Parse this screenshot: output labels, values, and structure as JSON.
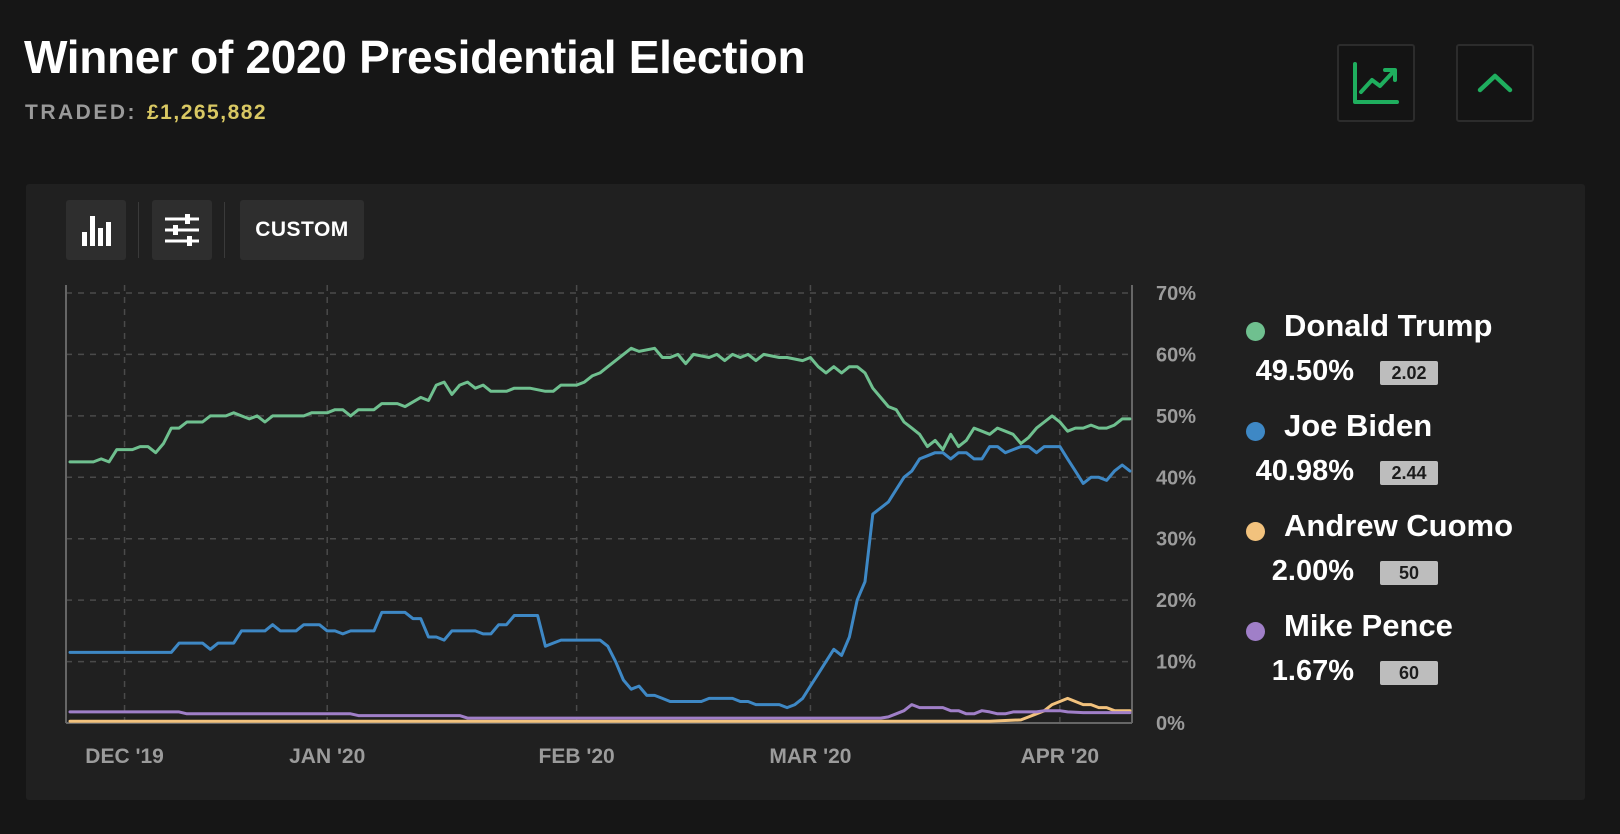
{
  "header": {
    "title": "Winner of 2020 Presidential Election",
    "traded_label": "TRADED:",
    "traded_amount": "£1,265,882",
    "chart_icon": "line-chart-icon",
    "collapse_icon": "chevron-up-icon"
  },
  "toolbar": {
    "bars_icon": "bar-chart-icon",
    "sliders_icon": "sliders-icon",
    "custom_label": "CUSTOM"
  },
  "colors": {
    "trump": "#6fc08f",
    "biden": "#3e88c5",
    "cuomo": "#f2c27d",
    "pence": "#a07fc8",
    "accent_green": "#1fae5e",
    "traded_amount": "#d9c863"
  },
  "legend": [
    {
      "name": "Donald Trump",
      "pct": "49.50%",
      "odds": "2.02",
      "color": "#6fc08f"
    },
    {
      "name": "Joe Biden",
      "pct": "40.98%",
      "odds": "2.44",
      "color": "#3e88c5"
    },
    {
      "name": "Andrew Cuomo",
      "pct": "2.00%",
      "odds": "50",
      "color": "#f2c27d"
    },
    {
      "name": "Mike Pence",
      "pct": "1.67%",
      "odds": "60",
      "color": "#a07fc8"
    }
  ],
  "chart_data": {
    "type": "line",
    "title": "Winner of 2020 Presidential Election",
    "x_unit": "days since 2019-11-27",
    "xlim": [
      0,
      136
    ],
    "ylim": [
      0,
      70
    ],
    "y_ticks": [
      0,
      10,
      20,
      30,
      40,
      50,
      60,
      70
    ],
    "y_tick_labels": [
      "0%",
      "10%",
      "20%",
      "30%",
      "40%",
      "50%",
      "60%",
      "70%"
    ],
    "x_ticks": [
      7,
      33,
      65,
      95,
      127
    ],
    "x_tick_labels": [
      "DEC '19",
      "JAN '20",
      "FEB '20",
      "MAR '20",
      "APR '20"
    ],
    "grid": true,
    "series": [
      {
        "name": "Donald Trump",
        "color": "#6fc08f",
        "points": [
          [
            0,
            42.5
          ],
          [
            3,
            42.5
          ],
          [
            4,
            43
          ],
          [
            5,
            42.5
          ],
          [
            6,
            44.5
          ],
          [
            8,
            44.5
          ],
          [
            9,
            45
          ],
          [
            10,
            45
          ],
          [
            11,
            44
          ],
          [
            12,
            45.5
          ],
          [
            13,
            48
          ],
          [
            14,
            48
          ],
          [
            15,
            49
          ],
          [
            17,
            49
          ],
          [
            18,
            50
          ],
          [
            20,
            50
          ],
          [
            21,
            50.5
          ],
          [
            22,
            50
          ],
          [
            23,
            49.5
          ],
          [
            24,
            50
          ],
          [
            25,
            49
          ],
          [
            26,
            50
          ],
          [
            30,
            50
          ],
          [
            31,
            50.5
          ],
          [
            33,
            50.5
          ],
          [
            34,
            51
          ],
          [
            35,
            51
          ],
          [
            36,
            50
          ],
          [
            37,
            51
          ],
          [
            39,
            51
          ],
          [
            40,
            52
          ],
          [
            42,
            52
          ],
          [
            43,
            51.5
          ],
          [
            45,
            53
          ],
          [
            46,
            52.5
          ],
          [
            47,
            55
          ],
          [
            48,
            55.5
          ],
          [
            49,
            53.5
          ],
          [
            50,
            55
          ],
          [
            51,
            55.5
          ],
          [
            52,
            54.5
          ],
          [
            53,
            55
          ],
          [
            54,
            54
          ],
          [
            56,
            54
          ],
          [
            57,
            54.5
          ],
          [
            59,
            54.5
          ],
          [
            61,
            54
          ],
          [
            62,
            54
          ],
          [
            63,
            55
          ],
          [
            65,
            55
          ],
          [
            66,
            55.5
          ],
          [
            67,
            56.5
          ],
          [
            68,
            57
          ],
          [
            69,
            58
          ],
          [
            70,
            59
          ],
          [
            71,
            60
          ],
          [
            72,
            61
          ],
          [
            73,
            60.5
          ],
          [
            75,
            61
          ],
          [
            76,
            59.5
          ],
          [
            77,
            59.5
          ],
          [
            78,
            60
          ],
          [
            79,
            58.5
          ],
          [
            80,
            60
          ],
          [
            82,
            59.5
          ],
          [
            83,
            60
          ],
          [
            84,
            59
          ],
          [
            85,
            60
          ],
          [
            86,
            59.5
          ],
          [
            87,
            60
          ],
          [
            88,
            59
          ],
          [
            89,
            60
          ],
          [
            91,
            59.5
          ],
          [
            92,
            59.5
          ],
          [
            94,
            59
          ],
          [
            95,
            59.5
          ],
          [
            96,
            58
          ],
          [
            97,
            57
          ],
          [
            98,
            58
          ],
          [
            99,
            57
          ],
          [
            100,
            58
          ],
          [
            101,
            58
          ],
          [
            102,
            57
          ],
          [
            103,
            54.5
          ],
          [
            104,
            53
          ],
          [
            105,
            51.5
          ],
          [
            106,
            51
          ],
          [
            107,
            49
          ],
          [
            108,
            48
          ],
          [
            109,
            47
          ],
          [
            110,
            45
          ],
          [
            111,
            46
          ],
          [
            112,
            44.5
          ],
          [
            113,
            47
          ],
          [
            114,
            45
          ],
          [
            115,
            46
          ],
          [
            116,
            48
          ],
          [
            117,
            47.5
          ],
          [
            118,
            47
          ],
          [
            119,
            48
          ],
          [
            120,
            47.5
          ],
          [
            121,
            47
          ],
          [
            122,
            45.5
          ],
          [
            123,
            46.5
          ],
          [
            124,
            48
          ],
          [
            125,
            49
          ],
          [
            126,
            50
          ],
          [
            127,
            49
          ],
          [
            128,
            47.5
          ],
          [
            129,
            48
          ],
          [
            130,
            48
          ],
          [
            131,
            48.5
          ],
          [
            132,
            48
          ],
          [
            133,
            48
          ],
          [
            134,
            48.5
          ],
          [
            135,
            49.5
          ],
          [
            136,
            49.5
          ]
        ]
      },
      {
        "name": "Joe Biden",
        "color": "#3e88c5",
        "points": [
          [
            0,
            11.5
          ],
          [
            13,
            11.5
          ],
          [
            14,
            13
          ],
          [
            17,
            13
          ],
          [
            18,
            12
          ],
          [
            19,
            13
          ],
          [
            21,
            13
          ],
          [
            22,
            15
          ],
          [
            25,
            15
          ],
          [
            26,
            16
          ],
          [
            27,
            15
          ],
          [
            29,
            15
          ],
          [
            30,
            16
          ],
          [
            32,
            16
          ],
          [
            33,
            15
          ],
          [
            34,
            15
          ],
          [
            35,
            14.5
          ],
          [
            36,
            15
          ],
          [
            38,
            15
          ],
          [
            39,
            15
          ],
          [
            40,
            18
          ],
          [
            43,
            18
          ],
          [
            44,
            17
          ],
          [
            45,
            17
          ],
          [
            46,
            14
          ],
          [
            47,
            14
          ],
          [
            48,
            13.5
          ],
          [
            49,
            15
          ],
          [
            52,
            15
          ],
          [
            53,
            14.5
          ],
          [
            54,
            14.5
          ],
          [
            55,
            16
          ],
          [
            56,
            16
          ],
          [
            57,
            17.5
          ],
          [
            60,
            17.5
          ],
          [
            61,
            12.5
          ],
          [
            62,
            13
          ],
          [
            63,
            13.5
          ],
          [
            68,
            13.5
          ],
          [
            69,
            12.5
          ],
          [
            70,
            10
          ],
          [
            71,
            7
          ],
          [
            72,
            5.5
          ],
          [
            73,
            6
          ],
          [
            74,
            4.5
          ],
          [
            75,
            4.5
          ],
          [
            76,
            4
          ],
          [
            77,
            3.5
          ],
          [
            81,
            3.5
          ],
          [
            82,
            4
          ],
          [
            85,
            4
          ],
          [
            86,
            3.5
          ],
          [
            87,
            3.5
          ],
          [
            88,
            3
          ],
          [
            91,
            3
          ],
          [
            92,
            2.5
          ],
          [
            93,
            3
          ],
          [
            94,
            4
          ],
          [
            95,
            6
          ],
          [
            96,
            8
          ],
          [
            97,
            10
          ],
          [
            98,
            12
          ],
          [
            99,
            11
          ],
          [
            100,
            14
          ],
          [
            101,
            20
          ],
          [
            102,
            23
          ],
          [
            103,
            34
          ],
          [
            104,
            35
          ],
          [
            105,
            36
          ],
          [
            106,
            38
          ],
          [
            107,
            40
          ],
          [
            108,
            41
          ],
          [
            109,
            43
          ],
          [
            110,
            43.5
          ],
          [
            111,
            44
          ],
          [
            112,
            44
          ],
          [
            113,
            43
          ],
          [
            114,
            44
          ],
          [
            115,
            44
          ],
          [
            116,
            43
          ],
          [
            117,
            43
          ],
          [
            118,
            45
          ],
          [
            119,
            45
          ],
          [
            120,
            44
          ],
          [
            121,
            44.5
          ],
          [
            122,
            45
          ],
          [
            123,
            45
          ],
          [
            124,
            44
          ],
          [
            125,
            45
          ],
          [
            126,
            45
          ],
          [
            127,
            45
          ],
          [
            128,
            43
          ],
          [
            129,
            41
          ],
          [
            130,
            39
          ],
          [
            131,
            40
          ],
          [
            132,
            40
          ],
          [
            133,
            39.5
          ],
          [
            134,
            41
          ],
          [
            135,
            42
          ],
          [
            136,
            41
          ]
        ]
      },
      {
        "name": "Andrew Cuomo",
        "color": "#f2c27d",
        "points": [
          [
            0,
            0.3
          ],
          [
            118,
            0.3
          ],
          [
            120,
            0.4
          ],
          [
            122,
            0.5
          ],
          [
            123,
            1
          ],
          [
            124,
            1.5
          ],
          [
            125,
            2
          ],
          [
            126,
            3
          ],
          [
            127,
            3.5
          ],
          [
            128,
            4
          ],
          [
            129,
            3.5
          ],
          [
            130,
            3
          ],
          [
            131,
            3
          ],
          [
            132,
            2.5
          ],
          [
            133,
            2.5
          ],
          [
            134,
            2
          ],
          [
            136,
            2
          ]
        ]
      },
      {
        "name": "Mike Pence",
        "color": "#a07fc8",
        "points": [
          [
            0,
            1.8
          ],
          [
            14,
            1.8
          ],
          [
            15,
            1.5
          ],
          [
            36,
            1.5
          ],
          [
            37,
            1.2
          ],
          [
            50,
            1.2
          ],
          [
            51,
            0.8
          ],
          [
            104,
            0.8
          ],
          [
            105,
            1
          ],
          [
            106,
            1.5
          ],
          [
            107,
            2
          ],
          [
            108,
            3
          ],
          [
            109,
            2.5
          ],
          [
            110,
            2.5
          ],
          [
            111,
            2.5
          ],
          [
            112,
            2.5
          ],
          [
            113,
            2
          ],
          [
            114,
            2
          ],
          [
            115,
            1.5
          ],
          [
            116,
            1.5
          ],
          [
            117,
            2
          ],
          [
            118,
            1.8
          ],
          [
            119,
            1.5
          ],
          [
            120,
            1.5
          ],
          [
            121,
            1.8
          ],
          [
            124,
            1.8
          ],
          [
            125,
            2
          ],
          [
            127,
            2
          ],
          [
            128,
            1.8
          ],
          [
            130,
            1.7
          ],
          [
            136,
            1.7
          ]
        ]
      }
    ]
  }
}
